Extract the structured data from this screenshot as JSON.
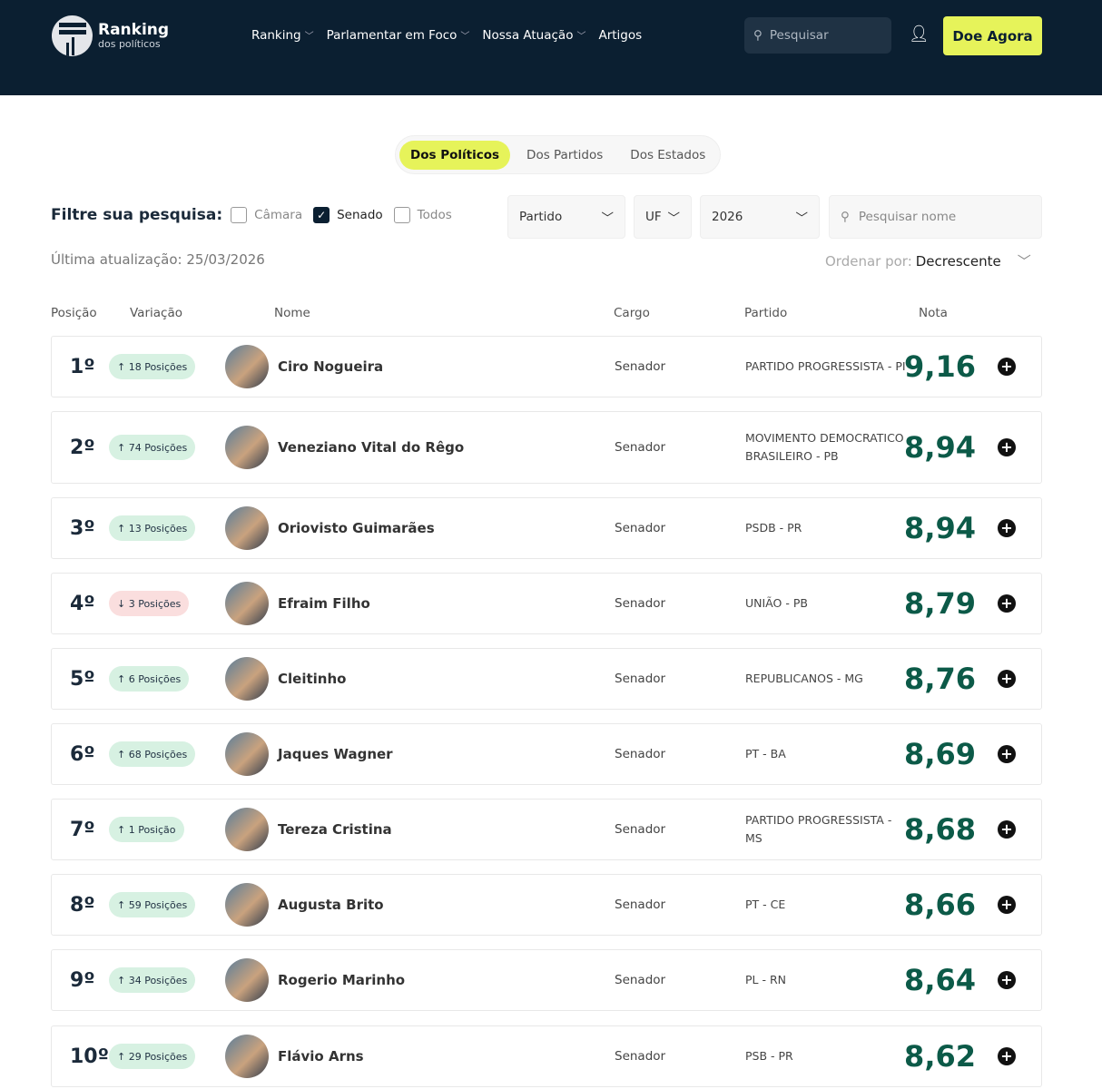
{
  "header": {
    "logo_title": "Ranking",
    "logo_subtitle": "dos políticos",
    "nav": [
      "Ranking",
      "Parlamentar em Foco",
      "Nossa Atuação",
      "Artigos"
    ],
    "search_placeholder": "Pesquisar",
    "donate": "Doe Agora"
  },
  "tabs": [
    "Dos Políticos",
    "Dos Partidos",
    "Dos Estados"
  ],
  "filters": {
    "label": "Filtre sua pesquisa:",
    "options": [
      {
        "label": "Câmara",
        "checked": false
      },
      {
        "label": "Senado",
        "checked": true
      },
      {
        "label": "Todos",
        "checked": false
      }
    ],
    "partido": "Partido",
    "uf": "UF",
    "year": "2026",
    "name_placeholder": "Pesquisar nome"
  },
  "updated": "Última atualização: 25/03/2026",
  "order": {
    "label": "Ordenar por:",
    "value": "Decrescente"
  },
  "columns": [
    "Posição",
    "Variação",
    "Nome",
    "Cargo",
    "Partido",
    "Nota"
  ],
  "rows": [
    {
      "pos": "1º",
      "var": "↑ 18 Posições",
      "dir": "up",
      "name": "Ciro Nogueira",
      "cargo": "Senador",
      "partido": "PARTIDO PROGRESSISTA - PI",
      "nota": "9,16"
    },
    {
      "pos": "2º",
      "var": "↑ 74 Posições",
      "dir": "up",
      "name": "Veneziano Vital do Rêgo",
      "cargo": "Senador",
      "partido": "MOVIMENTO DEMOCRATICO BRASILEIRO - PB",
      "nota": "8,94"
    },
    {
      "pos": "3º",
      "var": "↑ 13 Posições",
      "dir": "up",
      "name": "Oriovisto Guimarães",
      "cargo": "Senador",
      "partido": "PSDB - PR",
      "nota": "8,94"
    },
    {
      "pos": "4º",
      "var": "↓ 3 Posições",
      "dir": "down",
      "name": "Efraim Filho",
      "cargo": "Senador",
      "partido": "UNIÃO - PB",
      "nota": "8,79"
    },
    {
      "pos": "5º",
      "var": "↑ 6 Posições",
      "dir": "up",
      "name": "Cleitinho",
      "cargo": "Senador",
      "partido": "REPUBLICANOS - MG",
      "nota": "8,76"
    },
    {
      "pos": "6º",
      "var": "↑ 68 Posições",
      "dir": "up",
      "name": "Jaques Wagner",
      "cargo": "Senador",
      "partido": "PT - BA",
      "nota": "8,69"
    },
    {
      "pos": "7º",
      "var": "↑ 1 Posição",
      "dir": "up",
      "name": "Tereza Cristina",
      "cargo": "Senador",
      "partido": "PARTIDO PROGRESSISTA - MS",
      "nota": "8,68"
    },
    {
      "pos": "8º",
      "var": "↑ 59 Posições",
      "dir": "up",
      "name": "Augusta Brito",
      "cargo": "Senador",
      "partido": "PT - CE",
      "nota": "8,66"
    },
    {
      "pos": "9º",
      "var": "↑ 34 Posições",
      "dir": "up",
      "name": "Rogerio Marinho",
      "cargo": "Senador",
      "partido": "PL - RN",
      "nota": "8,64"
    },
    {
      "pos": "10º",
      "var": "↑ 29 Posições",
      "dir": "up",
      "name": "Flávio Arns",
      "cargo": "Senador",
      "partido": "PSB - PR",
      "nota": "8,62"
    }
  ]
}
